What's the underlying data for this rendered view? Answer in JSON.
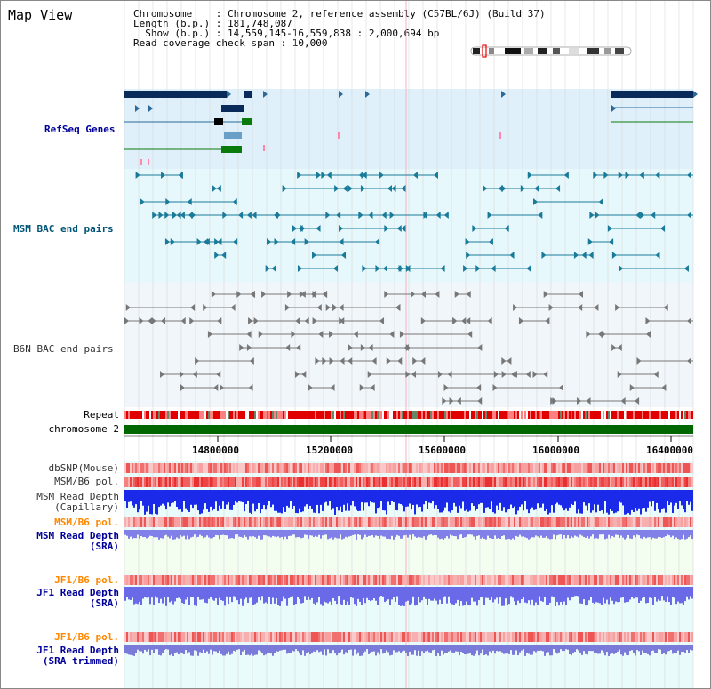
{
  "page": {
    "title": "Map View"
  },
  "info": {
    "line1": "Chromosome    : Chromosome 2, reference assembly (C57BL/6J) (Build 37)",
    "line2": "Length (b.p.) : 181,748,087",
    "line3": "  Show (b.p.) : 14,559,145-16,559,838 : 2,000,694 bp",
    "line4": "Read coverage check span : 10,000"
  },
  "tracks": {
    "refseq": "RefSeq Genes",
    "msm_bac": "MSM BAC end pairs",
    "b6n_bac": "B6N BAC end pairs",
    "repeat": "Repeat",
    "chromosome": "chromosome 2",
    "dbsnp": "dbSNP(Mouse)",
    "msm_b6_pol": "MSM/B6 pol.",
    "msm_depth_cap": "MSM Read Depth\n(Capillary)",
    "msm_b6_pol2": "MSM/B6 pol.",
    "msm_depth_sra": "MSM Read Depth\n(SRA)",
    "jf1_b6_pol": "JF1/B6 pol.",
    "jf1_depth_sra": "JF1 Read Depth\n(SRA)",
    "jf1_b6_pol2": "JF1/B6 pol.",
    "jf1_depth_trim": "JF1 Read Depth\n(SRA trimmed)"
  },
  "axis": {
    "ticks": [
      "14800000",
      "15200000",
      "15600000",
      "16000000",
      "16400000"
    ]
  },
  "colors": {
    "refseq_label": "#000099",
    "msm_label": "#005577",
    "pol_label": "#ff8800",
    "depth_label": "#000099",
    "chromosome_bar": "#006600",
    "refseq_bg": "#dff0fb",
    "msm_bg": "#e6f8fb",
    "b6n_bg": "#eef5fa"
  }
}
